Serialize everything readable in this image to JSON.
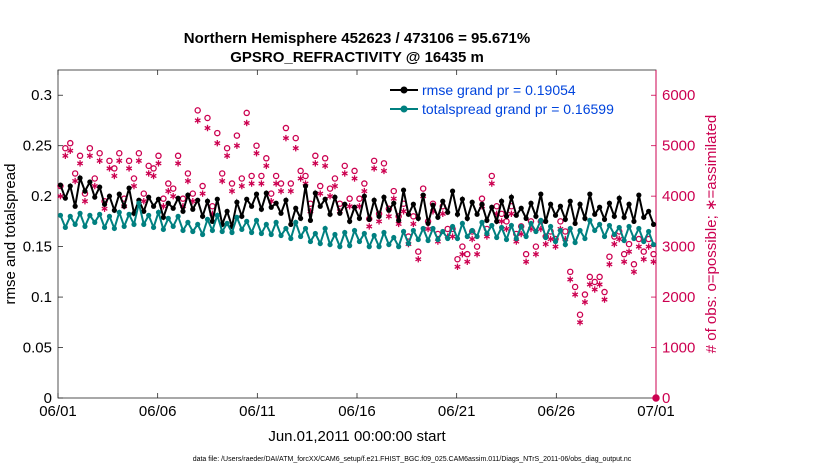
{
  "chart_data": {
    "type": "line",
    "title_line1": "Northern Hemisphere 452623 / 473106 = 95.671%",
    "title_line2": "GPSRO_REFRACTIVITY @ 16435 m",
    "xlabel": "Jun.01,2011 00:00:00 start",
    "ylabel_left": "rmse and totalspread",
    "ylabel_right": "# of obs: o=possible; ∗=assimilated",
    "footer": "data file: /Users/raeder/DAI/ATM_forcXX/CAM6_setup/f.e21.FHIST_BGC.f09_025.CAM6assim.011/Diags_NTrS_2011-06/obs_diag_output.nc",
    "xlim": [
      0,
      30
    ],
    "ylim_left": [
      0,
      0.325
    ],
    "ylim_right": [
      0,
      6500
    ],
    "x_ticks": [
      0,
      5,
      10,
      15,
      20,
      25,
      30
    ],
    "x_tick_labels": [
      "06/01",
      "06/06",
      "06/11",
      "06/16",
      "06/21",
      "06/26",
      "07/01"
    ],
    "y_left_ticks": [
      0,
      0.05,
      0.1,
      0.15,
      0.2,
      0.25,
      0.3
    ],
    "y_left_tick_labels": [
      "0",
      "0.05",
      "0.1",
      "0.15",
      "0.2",
      "0.25",
      "0.3"
    ],
    "y_right_ticks": [
      0,
      1000,
      2000,
      3000,
      4000,
      5000,
      6000
    ],
    "y_right_tick_labels": [
      "0",
      "1000",
      "2000",
      "3000",
      "4000",
      "5000",
      "6000"
    ],
    "legend_placement": "top-right",
    "colors": {
      "rmse": "#000000",
      "totalspread": "#008080",
      "obs": "#cc0050",
      "legend_text": "#0044dd"
    },
    "series": [
      {
        "name": "rmse grand pr = 0.19054",
        "axis": "left",
        "marker": "filled-circle",
        "values": [
          0.211,
          0.198,
          0.21,
          0.19,
          0.218,
          0.205,
          0.214,
          0.199,
          0.209,
          0.192,
          0.2,
          0.186,
          0.202,
          0.19,
          0.208,
          0.183,
          0.196,
          0.185,
          0.199,
          0.19,
          0.197,
          0.179,
          0.193,
          0.188,
          0.198,
          0.185,
          0.201,
          0.187,
          0.196,
          0.18,
          0.195,
          0.175,
          0.197,
          0.172,
          0.185,
          0.17,
          0.194,
          0.18,
          0.197,
          0.19,
          0.202,
          0.187,
          0.203,
          0.189,
          0.193,
          0.183,
          0.196,
          0.172,
          0.188,
          0.178,
          0.21,
          0.176,
          0.203,
          0.19,
          0.197,
          0.182,
          0.199,
          0.183,
          0.192,
          0.175,
          0.189,
          0.178,
          0.2,
          0.177,
          0.196,
          0.18,
          0.199,
          0.186,
          0.193,
          0.176,
          0.206,
          0.182,
          0.192,
          0.178,
          0.201,
          0.173,
          0.191,
          0.179,
          0.195,
          0.184,
          0.205,
          0.182,
          0.197,
          0.178,
          0.194,
          0.182,
          0.192,
          0.176,
          0.189,
          0.175,
          0.195,
          0.18,
          0.199,
          0.181,
          0.188,
          0.178,
          0.193,
          0.18,
          0.202,
          0.175,
          0.192,
          0.181,
          0.19,
          0.177,
          0.195,
          0.173,
          0.192,
          0.178,
          0.202,
          0.182,
          0.189,
          0.177,
          0.193,
          0.18,
          0.198,
          0.179,
          0.192,
          0.175,
          0.201,
          0.179,
          0.185,
          0.172
        ]
      },
      {
        "name": "totalspread grand pr = 0.16599",
        "axis": "left",
        "marker": "filled-circle",
        "values": [
          0.181,
          0.169,
          0.18,
          0.172,
          0.183,
          0.17,
          0.181,
          0.174,
          0.182,
          0.169,
          0.18,
          0.168,
          0.184,
          0.17,
          0.182,
          0.172,
          0.193,
          0.172,
          0.181,
          0.169,
          0.184,
          0.167,
          0.178,
          0.17,
          0.18,
          0.166,
          0.174,
          0.165,
          0.172,
          0.162,
          0.177,
          0.166,
          0.181,
          0.165,
          0.173,
          0.164,
          0.179,
          0.167,
          0.175,
          0.164,
          0.176,
          0.163,
          0.172,
          0.162,
          0.174,
          0.161,
          0.168,
          0.158,
          0.174,
          0.16,
          0.168,
          0.155,
          0.163,
          0.153,
          0.168,
          0.152,
          0.162,
          0.15,
          0.164,
          0.151,
          0.166,
          0.155,
          0.163,
          0.15,
          0.161,
          0.15,
          0.164,
          0.152,
          0.159,
          0.15,
          0.165,
          0.153,
          0.166,
          0.157,
          0.168,
          0.156,
          0.168,
          0.157,
          0.165,
          0.158,
          0.17,
          0.158,
          0.173,
          0.16,
          0.166,
          0.16,
          0.174,
          0.163,
          0.171,
          0.159,
          0.169,
          0.157,
          0.171,
          0.158,
          0.17,
          0.16,
          0.173,
          0.165,
          0.176,
          0.159,
          0.17,
          0.155,
          0.166,
          0.152,
          0.168,
          0.154,
          0.166,
          0.158,
          0.176,
          0.166,
          0.172,
          0.16,
          0.171,
          0.162,
          0.169,
          0.156,
          0.17,
          0.158,
          0.168,
          0.155,
          0.165,
          0.152
        ]
      },
      {
        "name": "possible",
        "axis": "right",
        "marker": "open-circle",
        "values": [
          4200,
          4950,
          5050,
          4450,
          4800,
          4050,
          4950,
          4350,
          4850,
          3900,
          4700,
          4550,
          4850,
          3950,
          4700,
          4350,
          4850,
          4050,
          4600,
          4550,
          4800,
          3950,
          4250,
          4150,
          4800,
          3950,
          4450,
          4050,
          5700,
          4200,
          5550,
          3800,
          5250,
          4450,
          4950,
          4250,
          5200,
          4350,
          5650,
          4400,
          5000,
          4400,
          4750,
          4050,
          4400,
          4250,
          5350,
          4250,
          5150,
          4500,
          4400,
          3850,
          4800,
          4200,
          4750,
          4150,
          4350,
          3850,
          4600,
          3950,
          4500,
          3950,
          4250,
          3550,
          4700,
          3650,
          4650,
          3750,
          4100,
          3600,
          3850,
          3200,
          3600,
          2900,
          4150,
          3500,
          3850,
          3250,
          3800,
          3350,
          3350,
          2750,
          3000,
          2850,
          3300,
          3000,
          3950,
          3350,
          4400,
          3800,
          3650,
          3500,
          3800,
          3250,
          3400,
          2850,
          3500,
          3000,
          3500,
          3200,
          3300,
          3150,
          3500,
          3300,
          2500,
          2200,
          1650,
          2050,
          2400,
          2300,
          2400,
          2100,
          2800,
          3200,
          3300,
          2850,
          3050,
          2650,
          3150,
          2900,
          3150,
          2850
        ]
      },
      {
        "name": "assimilated",
        "axis": "right",
        "marker": "asterisk",
        "values": [
          4000,
          4800,
          4900,
          4300,
          4650,
          3900,
          4800,
          4200,
          4700,
          3750,
          4550,
          4400,
          4700,
          3800,
          4550,
          4200,
          4700,
          3900,
          4450,
          4400,
          4650,
          3800,
          4100,
          4000,
          4650,
          3800,
          4300,
          3900,
          5500,
          4050,
          5350,
          3650,
          5050,
          4300,
          4800,
          4100,
          5000,
          4200,
          5450,
          4250,
          4850,
          4250,
          4600,
          3900,
          4250,
          4100,
          5150,
          4100,
          4950,
          4350,
          4250,
          3700,
          4650,
          4050,
          4600,
          4000,
          4200,
          3700,
          4450,
          3800,
          4350,
          3800,
          4100,
          3400,
          4550,
          3500,
          4500,
          3600,
          3950,
          3450,
          3700,
          3050,
          3450,
          2750,
          4000,
          3350,
          3700,
          3100,
          3650,
          3200,
          3200,
          2600,
          2850,
          2700,
          3150,
          2850,
          3800,
          3200,
          4250,
          3650,
          3500,
          3350,
          3650,
          3100,
          3250,
          2700,
          3350,
          2850,
          3350,
          3050,
          3150,
          3000,
          3350,
          3150,
          2350,
          2050,
          1500,
          1900,
          2250,
          2150,
          2250,
          1950,
          2650,
          3050,
          3150,
          2700,
          2900,
          2500,
          3000,
          2750,
          3000,
          2700
        ]
      }
    ],
    "extra_points": [
      {
        "series": "possible",
        "x": 30,
        "y": 0
      }
    ]
  }
}
